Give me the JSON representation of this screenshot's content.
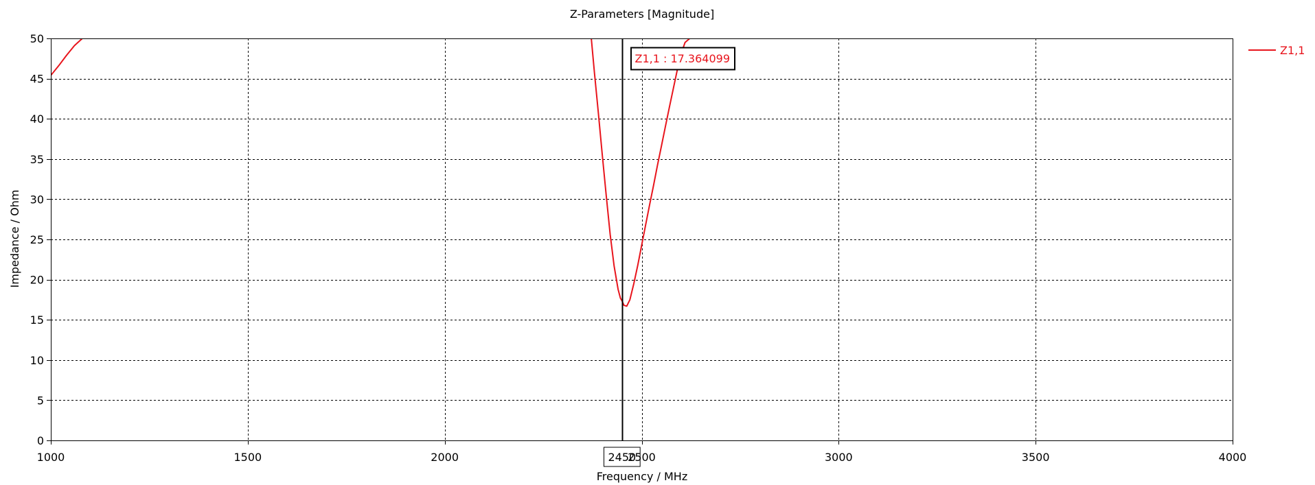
{
  "chart_data": {
    "type": "line",
    "title": "Z-Parameters [Magnitude]",
    "xlabel": "Frequency / MHz",
    "ylabel": "Impedance / Ohm",
    "xlim": [
      1000,
      4000
    ],
    "ylim": [
      0,
      50
    ],
    "xticks": [
      1000,
      1500,
      2000,
      2500,
      3000,
      3500,
      4000
    ],
    "xtick_labels": [
      "1000",
      "1500",
      "2000",
      "2500",
      "3000",
      "3500",
      "4000"
    ],
    "yticks": [
      0,
      5,
      10,
      15,
      20,
      25,
      30,
      35,
      40,
      45,
      50
    ],
    "ytick_labels": [
      "0",
      "5",
      "10",
      "15",
      "20",
      "25",
      "30",
      "35",
      "40",
      "45",
      "50"
    ],
    "grid": true,
    "legend_position": "top-right",
    "series": [
      {
        "name": "Z1,1",
        "color": "#e8141c",
        "segments": [
          {
            "x": [
              1000,
              1020,
              1040,
              1060,
              1080
            ],
            "y": [
              45.4,
              46.6,
              47.9,
              49.1,
              50.0
            ]
          },
          {
            "x": [
              2372,
              2380,
              2390,
              2400,
              2410,
              2420,
              2430,
              2440,
              2446,
              2450,
              2455,
              2462,
              2470,
              2480,
              2490,
              2500,
              2510,
              2520,
              2530,
              2540,
              2550,
              2560,
              2570,
              2580,
              2590,
              2600,
              2610,
              2622
            ],
            "y": [
              50.0,
              45.7,
              40.7,
              35.5,
              30.4,
              25.6,
              21.7,
              18.8,
              17.7,
              17.364,
              16.8,
              16.7,
              17.5,
              19.5,
              21.8,
              24.3,
              26.8,
              29.3,
              31.7,
              34.2,
              36.6,
              39.0,
              41.4,
              43.7,
              46.0,
              48.1,
              49.5,
              50.0
            ]
          }
        ]
      }
    ],
    "marker": {
      "x": 2450,
      "x_label": "2450",
      "label": "Z1,1 : 17.364099",
      "series": "Z1,1"
    }
  }
}
